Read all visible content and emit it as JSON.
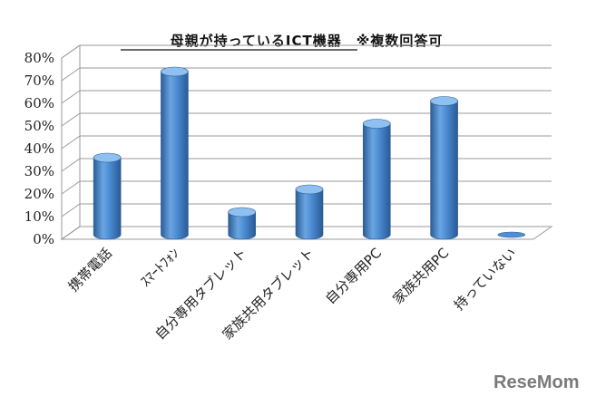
{
  "chart_data": {
    "type": "bar",
    "title": "母親が持っているICT機器　※複数回答可",
    "xlabel": "",
    "ylabel": "",
    "categories": [
      "携帯電話",
      "ｽﾏｰﾄﾌｫﾝ",
      "自分専用タブレット",
      "家族共用タブレット",
      "自分専用PC",
      "家族共用PC",
      "持っていない"
    ],
    "values": [
      34,
      72,
      10,
      20,
      49,
      59,
      0.5
    ],
    "ylim": [
      0,
      80
    ],
    "yticks": [
      "0%",
      "10%",
      "20%",
      "30%",
      "40%",
      "50%",
      "60%",
      "70%",
      "80%"
    ],
    "grid": true,
    "legend": "none"
  },
  "colors": {
    "bar": "#4f8ed2",
    "bar_dark": "#2e5f9a",
    "bar_light": "#8fc0f0",
    "grid": "#9a9a9a"
  },
  "watermark": "ReseMom"
}
